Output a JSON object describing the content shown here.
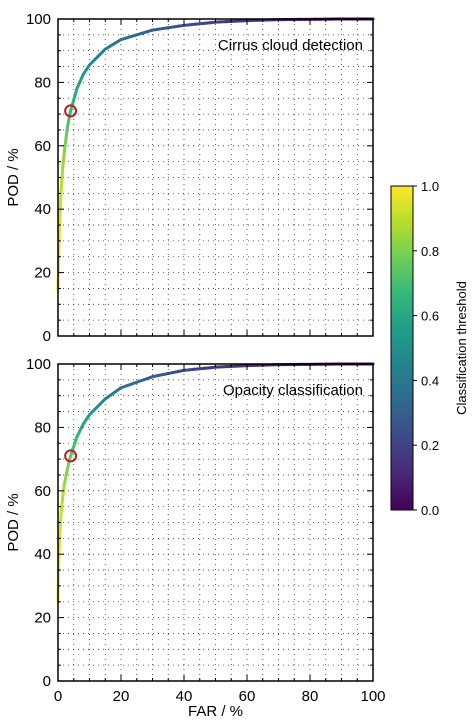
{
  "chart_data": [
    {
      "type": "line",
      "title": "Cirrus cloud detection",
      "xlabel": "",
      "ylabel": "POD / %",
      "xlim": [
        0,
        100
      ],
      "ylim": [
        0,
        100
      ],
      "xticks": [],
      "yticks": [
        "0",
        "20",
        "40",
        "60",
        "80",
        "100"
      ],
      "grid": true,
      "colormap": "viridis",
      "color_by": "Classification threshold",
      "series": [
        {
          "x": [
            0,
            0.2,
            0.5,
            1,
            1.5,
            2,
            3,
            4,
            6,
            8,
            10,
            15,
            20,
            30,
            40,
            50,
            60,
            70,
            80,
            90,
            100
          ],
          "y": [
            14,
            25,
            35,
            46,
            53,
            58,
            66,
            71,
            78,
            82.5,
            85.5,
            90.5,
            93.5,
            96.5,
            98,
            99,
            99.5,
            99.8,
            99.9,
            100,
            100
          ],
          "threshold": [
            1.0,
            0.98,
            0.95,
            0.9,
            0.86,
            0.82,
            0.74,
            0.68,
            0.6,
            0.55,
            0.5,
            0.43,
            0.38,
            0.3,
            0.24,
            0.19,
            0.14,
            0.1,
            0.06,
            0.03,
            0.0
          ]
        }
      ],
      "marker": {
        "x": 4,
        "y": 71,
        "style": "open-circle",
        "color": "#b22222"
      }
    },
    {
      "type": "line",
      "title": "Opacity classification",
      "xlabel": "FAR / %",
      "ylabel": "POD / %",
      "xlim": [
        0,
        100
      ],
      "ylim": [
        0,
        100
      ],
      "xticks": [
        "0",
        "20",
        "40",
        "60",
        "80",
        "100"
      ],
      "yticks": [
        "0",
        "20",
        "40",
        "60",
        "80",
        "100"
      ],
      "grid": true,
      "colormap": "viridis",
      "color_by": "Classification threshold",
      "series": [
        {
          "x": [
            0,
            0.2,
            0.5,
            1,
            1.5,
            2,
            3,
            4,
            6,
            8,
            10,
            15,
            20,
            30,
            40,
            50,
            60,
            70,
            80,
            90,
            100
          ],
          "y": [
            25,
            36,
            45,
            53,
            58,
            62,
            67,
            71,
            77,
            81,
            84,
            89,
            92.5,
            96,
            98,
            99,
            99.5,
            99.8,
            99.9,
            100,
            100
          ],
          "threshold": [
            1.0,
            0.98,
            0.95,
            0.92,
            0.89,
            0.86,
            0.8,
            0.75,
            0.67,
            0.6,
            0.55,
            0.46,
            0.39,
            0.3,
            0.23,
            0.17,
            0.12,
            0.08,
            0.05,
            0.02,
            0.0
          ]
        }
      ],
      "marker": {
        "x": 4,
        "y": 71,
        "style": "open-circle",
        "color": "#b22222"
      }
    }
  ],
  "colorbar": {
    "label": "Classification threshold",
    "range": [
      0,
      1
    ],
    "ticks": [
      "0.0",
      "0.2",
      "0.4",
      "0.6",
      "0.8",
      "1.0"
    ]
  },
  "viridis": [
    "#440154",
    "#482878",
    "#3e4989",
    "#31688e",
    "#26828e",
    "#1f9e89",
    "#35b779",
    "#6ece58",
    "#b5de2b",
    "#fde725"
  ]
}
